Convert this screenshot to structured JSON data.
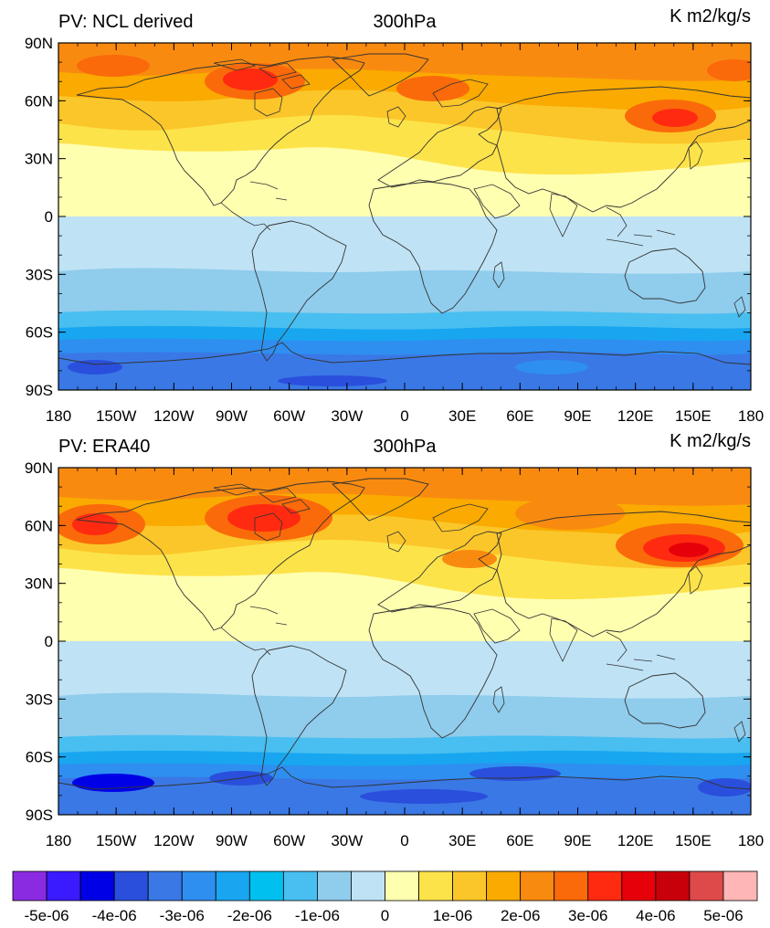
{
  "panels": [
    {
      "left_title": "PV: NCL derived",
      "center_title": "300hPa",
      "right_title": "K m2/kg/s"
    },
    {
      "left_title": "PV: ERA40",
      "center_title": "300hPa",
      "right_title": "K m2/kg/s"
    }
  ],
  "lat_labels": [
    "90N",
    "60N",
    "30N",
    "0",
    "30S",
    "60S",
    "90S"
  ],
  "lon_labels": [
    "180",
    "150W",
    "120W",
    "90W",
    "60W",
    "30W",
    "0",
    "30E",
    "60E",
    "90E",
    "120E",
    "150E",
    "180"
  ],
  "colorbar": {
    "colors": [
      "#8a2be2",
      "#3a1aff",
      "#0000e6",
      "#2a4fdc",
      "#3a78e6",
      "#2e8ff0",
      "#18a6f0",
      "#00c0f0",
      "#48bff0",
      "#90ccec",
      "#bfe3f5",
      "#ffffb0",
      "#fde34a",
      "#fbc62a",
      "#faaa00",
      "#f98a10",
      "#fa6a0a",
      "#ff2a10",
      "#e6000a",
      "#c8000a",
      "#de4a4a",
      "#ffb6b6"
    ],
    "labels": [
      "-5e-06",
      "-4e-06",
      "-3e-06",
      "-2e-06",
      "-1e-06",
      "0",
      "1e-06",
      "2e-06",
      "3e-06",
      "4e-06",
      "5e-06"
    ]
  },
  "colors": {
    "ocean_blue": "#bfe3f5",
    "mid_blue": "#90ccec",
    "deep_blue": "#3a78e6",
    "pale_yellow": "#ffffb0",
    "yellow": "#fde34a",
    "orange": "#faaa00",
    "red": "#ff2a10"
  }
}
